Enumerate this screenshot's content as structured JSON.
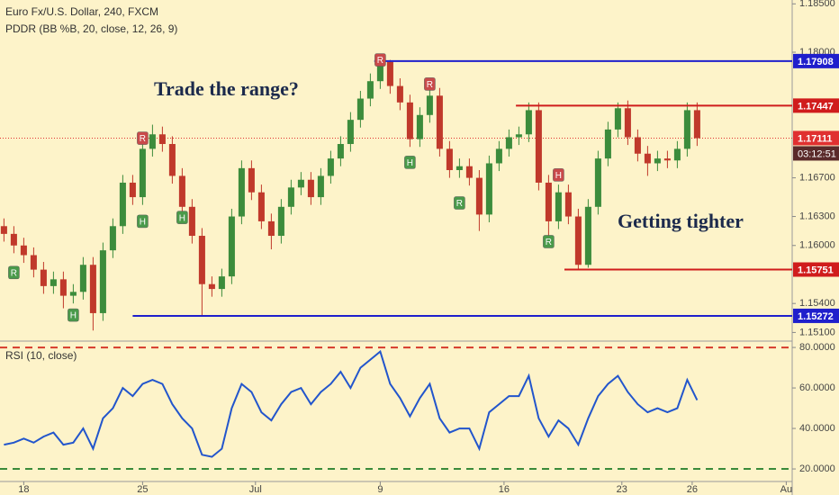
{
  "chart_data": [
    {
      "type": "candlestick",
      "title": "Euro Fx/U.S. Dollar, 240, FXCM",
      "subtitle": "PDDR (BB %B, 20, close, 12, 26, 9)",
      "annotations": [
        "Trade the range?",
        "Getting tighter"
      ],
      "up_color": "#3c8c3c",
      "down_color": "#c0392b",
      "open": [
        1.162,
        1.1612,
        1.16,
        1.159,
        1.1575,
        1.1558,
        1.1565,
        1.1548,
        1.1552,
        1.158,
        1.153,
        1.1595,
        1.162,
        1.1665,
        1.165,
        1.17,
        1.1715,
        1.1705,
        1.1672,
        1.164,
        1.161,
        1.156,
        1.1555,
        1.1568,
        1.163,
        1.168,
        1.1655,
        1.1625,
        1.161,
        1.164,
        1.166,
        1.1668,
        1.165,
        1.1672,
        1.169,
        1.1705,
        1.173,
        1.1752,
        1.177,
        1.179,
        1.1765,
        1.1748,
        1.171,
        1.1735,
        1.1755,
        1.17,
        1.1678,
        1.1682,
        1.167,
        1.1632,
        1.1685,
        1.17,
        1.1712,
        1.1715,
        1.174,
        1.1665,
        1.1625,
        1.1655,
        1.163,
        1.158,
        1.164,
        1.169,
        1.172,
        1.1742,
        1.1712,
        1.1695,
        1.1685,
        1.169,
        1.1688,
        1.17,
        1.174
      ],
      "high": [
        1.1628,
        1.162,
        1.1608,
        1.1598,
        1.1583,
        1.1573,
        1.1573,
        1.156,
        1.1588,
        1.1588,
        1.1603,
        1.1628,
        1.1673,
        1.1673,
        1.1708,
        1.1725,
        1.1723,
        1.1713,
        1.168,
        1.1648,
        1.1618,
        1.1568,
        1.1576,
        1.1638,
        1.1688,
        1.1688,
        1.1663,
        1.1633,
        1.1648,
        1.1668,
        1.1676,
        1.1676,
        1.168,
        1.1698,
        1.1713,
        1.1738,
        1.176,
        1.1778,
        1.1798,
        1.1792,
        1.1773,
        1.1756,
        1.1743,
        1.1762,
        1.1763,
        1.1708,
        1.169,
        1.169,
        1.1678,
        1.1693,
        1.1708,
        1.172,
        1.1723,
        1.1748,
        1.1748,
        1.1673,
        1.1663,
        1.1663,
        1.1638,
        1.1648,
        1.1698,
        1.1728,
        1.1748,
        1.175,
        1.172,
        1.1703,
        1.1698,
        1.1698,
        1.1708,
        1.1748,
        1.1748
      ],
      "low": [
        1.1604,
        1.1592,
        1.1582,
        1.1567,
        1.155,
        1.155,
        1.1535,
        1.154,
        1.1544,
        1.1512,
        1.1522,
        1.1587,
        1.1612,
        1.1642,
        1.1642,
        1.1692,
        1.1697,
        1.1664,
        1.1632,
        1.1602,
        1.1528,
        1.1547,
        1.1547,
        1.156,
        1.1622,
        1.1647,
        1.1617,
        1.1596,
        1.1602,
        1.1632,
        1.1652,
        1.1642,
        1.1642,
        1.1664,
        1.1682,
        1.1697,
        1.1722,
        1.1744,
        1.1762,
        1.1757,
        1.174,
        1.1702,
        1.1702,
        1.1727,
        1.1692,
        1.167,
        1.167,
        1.1662,
        1.1615,
        1.1624,
        1.1677,
        1.1692,
        1.1704,
        1.1707,
        1.1657,
        1.161,
        1.1617,
        1.1622,
        1.1575,
        1.1577,
        1.1632,
        1.1682,
        1.1712,
        1.1704,
        1.1687,
        1.1672,
        1.1677,
        1.168,
        1.168,
        1.1692,
        1.1703
      ],
      "close": [
        1.1612,
        1.16,
        1.159,
        1.1575,
        1.1558,
        1.1565,
        1.1548,
        1.1552,
        1.158,
        1.153,
        1.1595,
        1.162,
        1.1665,
        1.165,
        1.17,
        1.1715,
        1.1705,
        1.1672,
        1.164,
        1.161,
        1.156,
        1.1555,
        1.1568,
        1.163,
        1.168,
        1.1655,
        1.1625,
        1.161,
        1.164,
        1.166,
        1.1668,
        1.165,
        1.1672,
        1.169,
        1.1705,
        1.173,
        1.1752,
        1.177,
        1.179,
        1.1765,
        1.1748,
        1.171,
        1.1735,
        1.1755,
        1.17,
        1.1678,
        1.1682,
        1.167,
        1.1632,
        1.1685,
        1.17,
        1.1712,
        1.1715,
        1.174,
        1.1665,
        1.1625,
        1.1655,
        1.163,
        1.158,
        1.164,
        1.169,
        1.172,
        1.1742,
        1.1712,
        1.1695,
        1.1685,
        1.169,
        1.1688,
        1.17,
        1.174,
        1.1711
      ],
      "xlim": [
        -0.4,
        79.6
      ],
      "xticks": [
        {
          "value": 2,
          "label": "18"
        },
        {
          "value": 14,
          "label": "25"
        },
        {
          "value": 25.4,
          "label": "Jul"
        },
        {
          "value": 38,
          "label": "9"
        },
        {
          "value": 50.5,
          "label": "16"
        },
        {
          "value": 62.4,
          "label": "23"
        },
        {
          "value": 69.5,
          "label": "26"
        },
        {
          "value": 79,
          "label": "Au"
        }
      ],
      "ylim": [
        1.1502,
        1.1854
      ],
      "yticks": [
        {
          "value": 1.185,
          "label": "1.18500"
        },
        {
          "value": 1.18,
          "label": "1.18000"
        },
        {
          "value": 1.167,
          "label": "1.16700"
        },
        {
          "value": 1.163,
          "label": "1.16300"
        },
        {
          "value": 1.16,
          "label": "1.16000"
        },
        {
          "value": 1.154,
          "label": "1.15400"
        },
        {
          "value": 1.151,
          "label": "1.15100"
        }
      ],
      "levels": [
        {
          "value": 1.17908,
          "color": "#1f1fcc",
          "start": 37.4
        },
        {
          "value": 1.17447,
          "color": "#d01c1c",
          "start": 51.7
        },
        {
          "value": 1.15751,
          "color": "#d01c1c",
          "start": 56.6
        },
        {
          "value": 1.15272,
          "color": "#1f1fcc",
          "start": 13
        }
      ],
      "last": {
        "value": 1.17111,
        "color": "#e03030",
        "countdown": "03:12:51"
      },
      "signals": [
        {
          "label": "R",
          "x": 14,
          "y": 1.1711,
          "color": "#c94a4a"
        },
        {
          "label": "R",
          "x": 38,
          "y": 1.1792,
          "color": "#c94a4a"
        },
        {
          "label": "R",
          "x": 43,
          "y": 1.1767,
          "color": "#c94a4a"
        },
        {
          "label": "H",
          "x": 56,
          "y": 1.1673,
          "color": "#c94a4a"
        },
        {
          "label": "R",
          "x": 1,
          "y": 1.1572,
          "color": "#4a9a4a"
        },
        {
          "label": "R",
          "x": 46,
          "y": 1.1644,
          "color": "#4a9a4a"
        },
        {
          "label": "R",
          "x": 55,
          "y": 1.1604,
          "color": "#4a9a4a"
        },
        {
          "label": "H",
          "x": 7,
          "y": 1.1528,
          "color": "#4a9a4a"
        },
        {
          "label": "H",
          "x": 14,
          "y": 1.1625,
          "color": "#4a9a4a"
        },
        {
          "label": "H",
          "x": 18,
          "y": 1.1629,
          "color": "#4a9a4a"
        },
        {
          "label": "H",
          "x": 41,
          "y": 1.1686,
          "color": "#4a9a4a"
        }
      ]
    },
    {
      "type": "line",
      "title": "RSI (10, close)",
      "color": "#2255cc",
      "values": [
        32,
        33,
        35,
        33,
        36,
        38,
        32,
        33,
        40,
        30,
        45,
        50,
        60,
        56,
        62,
        64,
        62,
        52,
        45,
        40,
        27,
        26,
        30,
        50,
        62,
        58,
        48,
        44,
        52,
        58,
        60,
        52,
        58,
        62,
        68,
        60,
        70,
        74,
        78,
        62,
        55,
        46,
        55,
        62,
        45,
        38,
        40,
        40,
        30,
        48,
        52,
        56,
        56,
        66,
        45,
        36,
        44,
        40,
        32,
        45,
        56,
        62,
        66,
        58,
        52,
        48,
        50,
        48,
        50,
        64,
        54
      ],
      "y2lim": [
        13.8,
        82.7
      ],
      "y2ticks": [
        {
          "value": 80,
          "label": "80.0000"
        },
        {
          "value": 60,
          "label": "60.0000"
        },
        {
          "value": 40,
          "label": "40.0000"
        },
        {
          "value": 20,
          "label": "20.0000"
        }
      ],
      "bands": [
        {
          "value": 80,
          "color": "#d63a2a"
        },
        {
          "value": 20,
          "color": "#3a8a3a"
        }
      ]
    }
  ]
}
